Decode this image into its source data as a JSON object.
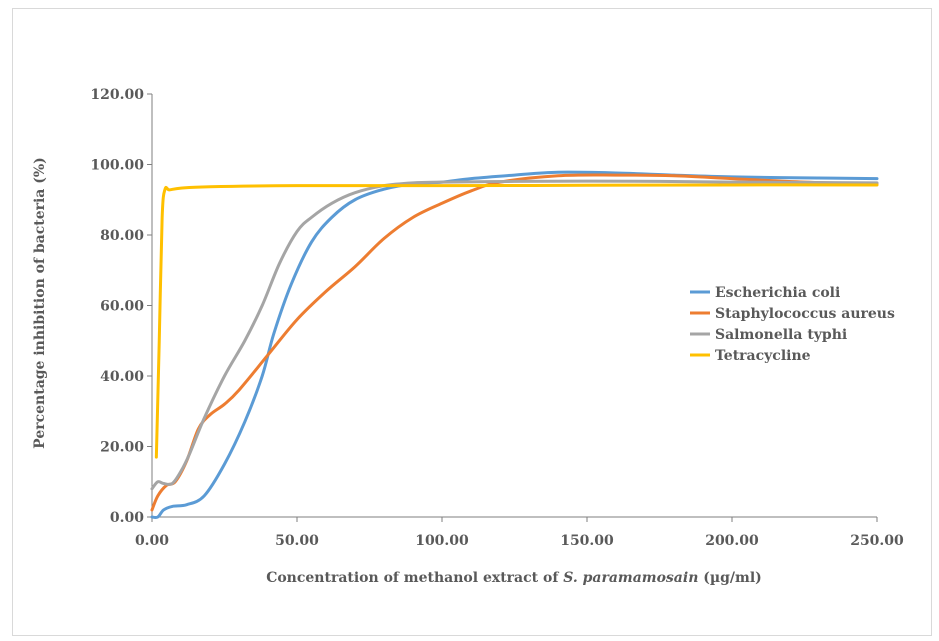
{
  "chart_data": {
    "type": "line",
    "xlabel": "Concentration of methanol extract of",
    "xlabel_italic": "S. paramamosain",
    "xlabel_unit": "(µg/ml)",
    "ylabel": "Percentage inhibition of bacteria (%)",
    "xlim": [
      0,
      250
    ],
    "ylim": [
      0,
      120
    ],
    "x_ticks": [
      "0.00",
      "50.00",
      "100.00",
      "150.00",
      "200.00",
      "250.00"
    ],
    "y_ticks": [
      "0.00",
      "20.00",
      "40.00",
      "60.00",
      "80.00",
      "100.00",
      "120.00"
    ],
    "grid": false,
    "legend_position": "right",
    "series": [
      {
        "name": "Escherichia coli",
        "color": "#5B9BD5",
        "points": [
          [
            0,
            0
          ],
          [
            2,
            0
          ],
          [
            4,
            2
          ],
          [
            7,
            3
          ],
          [
            12,
            3.5
          ],
          [
            18,
            6
          ],
          [
            25,
            15
          ],
          [
            32,
            27
          ],
          [
            38,
            40
          ],
          [
            42,
            52
          ],
          [
            48,
            66
          ],
          [
            55,
            78
          ],
          [
            62,
            85
          ],
          [
            70,
            90
          ],
          [
            80,
            93
          ],
          [
            90,
            94.5
          ],
          [
            100,
            95
          ],
          [
            110,
            96
          ],
          [
            125,
            97
          ],
          [
            140,
            97.8
          ],
          [
            160,
            97.6
          ],
          [
            180,
            97
          ],
          [
            200,
            96.5
          ],
          [
            225,
            96.2
          ],
          [
            250,
            96
          ]
        ]
      },
      {
        "name": "Staphylococcus aureus",
        "color": "#ED7D31",
        "points": [
          [
            0,
            2
          ],
          [
            2,
            6
          ],
          [
            5,
            9
          ],
          [
            8,
            10
          ],
          [
            12,
            16
          ],
          [
            16,
            25
          ],
          [
            20,
            29
          ],
          [
            25,
            32
          ],
          [
            30,
            36
          ],
          [
            40,
            46
          ],
          [
            50,
            56
          ],
          [
            60,
            64
          ],
          [
            70,
            71
          ],
          [
            80,
            79
          ],
          [
            90,
            85
          ],
          [
            100,
            89
          ],
          [
            110,
            92.5
          ],
          [
            120,
            95
          ],
          [
            140,
            96.8
          ],
          [
            160,
            97
          ],
          [
            180,
            96.8
          ],
          [
            200,
            96
          ],
          [
            225,
            95
          ],
          [
            250,
            94.5
          ]
        ]
      },
      {
        "name": "Salmonella typhi",
        "color": "#A5A5A5",
        "points": [
          [
            0,
            8
          ],
          [
            2,
            10
          ],
          [
            4,
            9.5
          ],
          [
            7,
            9.5
          ],
          [
            10,
            13
          ],
          [
            13,
            18
          ],
          [
            18,
            28
          ],
          [
            25,
            40
          ],
          [
            32,
            50
          ],
          [
            38,
            60
          ],
          [
            44,
            72
          ],
          [
            50,
            81
          ],
          [
            55,
            85
          ],
          [
            62,
            89
          ],
          [
            70,
            92
          ],
          [
            80,
            94
          ],
          [
            90,
            94.8
          ],
          [
            100,
            95
          ],
          [
            125,
            95.2
          ],
          [
            150,
            95.3
          ],
          [
            175,
            95.2
          ],
          [
            200,
            95
          ],
          [
            225,
            94.9
          ],
          [
            250,
            94.8
          ]
        ]
      },
      {
        "name": "Tetracycline",
        "color": "#FFC000",
        "points": [
          [
            1.5,
            17
          ],
          [
            2.5,
            50
          ],
          [
            3.5,
            85
          ],
          [
            4.5,
            93
          ],
          [
            6,
            92.8
          ],
          [
            10,
            93.3
          ],
          [
            20,
            93.7
          ],
          [
            50,
            94
          ],
          [
            100,
            94
          ],
          [
            150,
            94.1
          ],
          [
            200,
            94.2
          ],
          [
            250,
            94.2
          ]
        ]
      }
    ]
  }
}
